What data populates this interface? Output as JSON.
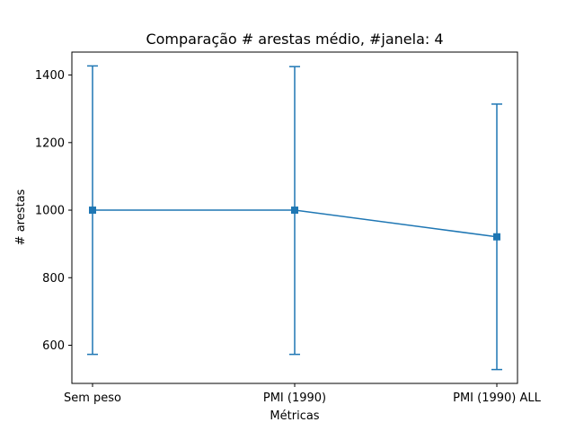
{
  "chart_data": {
    "type": "line",
    "title": "Comparação # arestas médio, #janela: 4",
    "xlabel": "Métricas",
    "ylabel": "# arestas",
    "categories": [
      "Sem peso",
      "PMI (1990)",
      "PMI (1990) ALL"
    ],
    "series": [
      {
        "values": [
          1000,
          1000,
          921
        ],
        "error_low": [
          573,
          573,
          528
        ],
        "error_high": [
          1427,
          1425,
          1314
        ],
        "color": "#1f77b4",
        "marker": "square"
      }
    ],
    "yticks": [
      600,
      800,
      1000,
      1200,
      1400
    ],
    "ylim": [
      487,
      1468
    ],
    "grid": false,
    "legend": "none"
  }
}
